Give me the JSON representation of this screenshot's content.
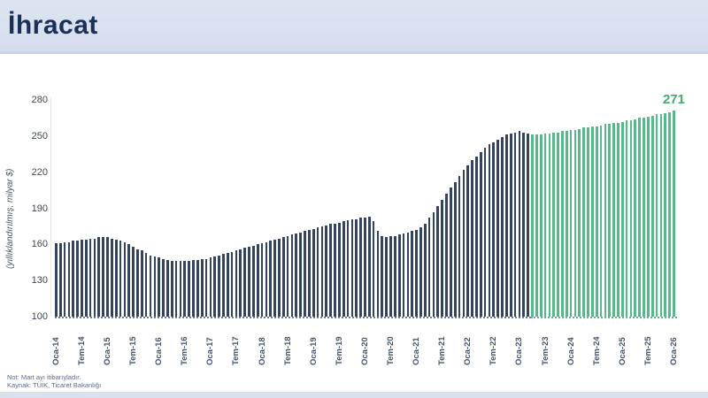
{
  "header": {
    "title": "İhracat"
  },
  "chart_data": {
    "type": "bar",
    "title": "İhracat",
    "ylabel": "(yıllıklandırılmış, milyar $)",
    "ylim": [
      100,
      280
    ],
    "yticks": [
      100,
      130,
      160,
      190,
      220,
      250,
      280
    ],
    "frequency": "monthly",
    "x_start": "Oca-14",
    "x_end": "Oca-26",
    "x_tick_every": 6,
    "x_tick_labels": [
      "Oca-14",
      "Tem-14",
      "Oca-15",
      "Tem-15",
      "Oca-16",
      "Tem-16",
      "Oca-17",
      "Tem-17",
      "Oca-18",
      "Tem-18",
      "Oca-19",
      "Tem-19",
      "Oca-20",
      "Tem-20",
      "Oca-21",
      "Tem-21",
      "Oca-22",
      "Tem-22",
      "Oca-23",
      "Tem-23",
      "Oca-24",
      "Tem-24",
      "Oca-25",
      "Tem-25",
      "Oca-26"
    ],
    "values": [
      161,
      161,
      162,
      162,
      163,
      163,
      164,
      164,
      165,
      165,
      166,
      166,
      166,
      165,
      164,
      163,
      162,
      160,
      158,
      156,
      155,
      153,
      151,
      150,
      149,
      148,
      147,
      146,
      146,
      146,
      146,
      146,
      147,
      147,
      148,
      148,
      149,
      150,
      151,
      152,
      153,
      154,
      155,
      156,
      157,
      158,
      159,
      160,
      161,
      162,
      163,
      164,
      165,
      166,
      167,
      168,
      169,
      170,
      171,
      172,
      173,
      174,
      175,
      176,
      177,
      177,
      178,
      179,
      180,
      181,
      181,
      182,
      182,
      183,
      179,
      171,
      167,
      166,
      167,
      167,
      168,
      169,
      170,
      171,
      172,
      174,
      177,
      182,
      187,
      192,
      197,
      202,
      207,
      212,
      217,
      222,
      226,
      230,
      233,
      237,
      240,
      243,
      245,
      247,
      249,
      251,
      252,
      253,
      254,
      253,
      252,
      251,
      251,
      251,
      252,
      252,
      253,
      253,
      254,
      254,
      255,
      255,
      256,
      257,
      257,
      258,
      258,
      259,
      260,
      260,
      261,
      261,
      262,
      263,
      263,
      264,
      265,
      265,
      266,
      267,
      268,
      268,
      269,
      270,
      271
    ],
    "forecast_start_index": 111,
    "end_label": {
      "text": "271"
    },
    "legend": "none",
    "grid": "off"
  },
  "colors": {
    "historical_bar": "#35445e",
    "forecast_bar": "#55b98a",
    "accent_green": "#43ab6d",
    "title_color": "#1b3059",
    "header_bg": "#dae1ee"
  },
  "footer": {
    "note": "Not: Mart ayı itibarıyladır.",
    "source": "Kaynak: TÜİK, Ticaret Bakanlığı"
  }
}
